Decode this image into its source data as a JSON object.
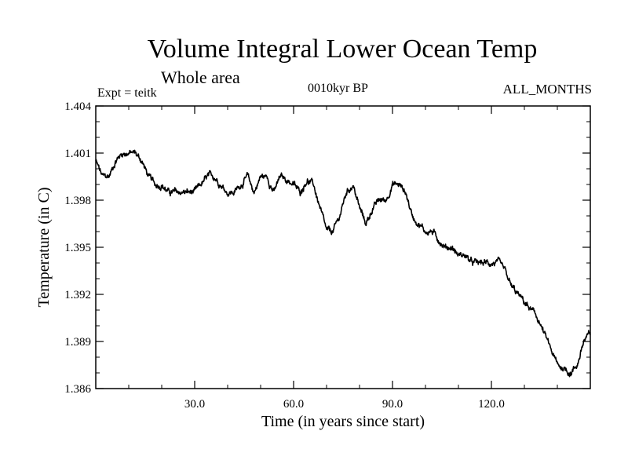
{
  "chart_data": {
    "type": "line",
    "title": "Volume Integral Lower Ocean Temp",
    "subtitle": "Whole area",
    "experiment_label": "Expt = teitk",
    "period_label": "0010kyr BP",
    "months_label": "ALL_MONTHS",
    "xlabel": "Time (in years since start)",
    "ylabel": "Temperature (in C)",
    "xlim": [
      0,
      150
    ],
    "ylim": [
      1.386,
      1.404
    ],
    "xticks": [
      30,
      60,
      90,
      120
    ],
    "xtick_labels": [
      "30.0",
      "60.0",
      "90.0",
      "120.0"
    ],
    "yticks": [
      1.386,
      1.389,
      1.392,
      1.395,
      1.398,
      1.401,
      1.404
    ],
    "ytick_labels": [
      "1.386",
      "1.389",
      "1.392",
      "1.395",
      "1.398",
      "1.401",
      "1.404"
    ],
    "series": [
      {
        "name": "Temperature",
        "color": "#000000",
        "x": [
          0,
          2,
          4,
          6,
          8,
          10,
          12,
          14,
          16,
          18,
          20,
          22,
          24,
          26,
          28,
          30,
          32,
          34,
          36,
          38,
          40,
          42,
          44,
          46,
          48,
          50,
          52,
          54,
          56,
          58,
          60,
          62,
          64,
          66,
          68,
          70,
          72,
          74,
          76,
          78,
          80,
          82,
          84,
          86,
          88,
          90,
          92,
          94,
          96,
          98,
          100,
          102,
          104,
          106,
          108,
          110,
          112,
          114,
          116,
          118,
          120,
          122,
          124,
          126,
          128,
          130,
          132,
          134,
          136,
          138,
          140,
          142,
          144,
          146,
          148,
          150
        ],
        "values": [
          1.4005,
          1.3995,
          1.3995,
          1.4005,
          1.401,
          1.401,
          1.401,
          1.4005,
          1.3995,
          1.399,
          1.399,
          1.3985,
          1.3985,
          1.3985,
          1.3985,
          1.3985,
          1.399,
          1.3995,
          1.3995,
          1.399,
          1.3985,
          1.3985,
          1.399,
          1.3995,
          1.3985,
          1.3995,
          1.3995,
          1.3985,
          1.3995,
          1.3993,
          1.399,
          1.3985,
          1.3993,
          1.399,
          1.3975,
          1.396,
          1.396,
          1.397,
          1.3985,
          1.399,
          1.3975,
          1.3965,
          1.3975,
          1.398,
          1.398,
          1.399,
          1.399,
          1.3985,
          1.397,
          1.3965,
          1.396,
          1.396,
          1.3955,
          1.395,
          1.395,
          1.3945,
          1.3945,
          1.394,
          1.394,
          1.394,
          1.394,
          1.394,
          1.3935,
          1.3925,
          1.392,
          1.3915,
          1.391,
          1.3905,
          1.3895,
          1.3885,
          1.3875,
          1.3873,
          1.387,
          1.3875,
          1.389,
          1.3895
        ]
      }
    ]
  }
}
